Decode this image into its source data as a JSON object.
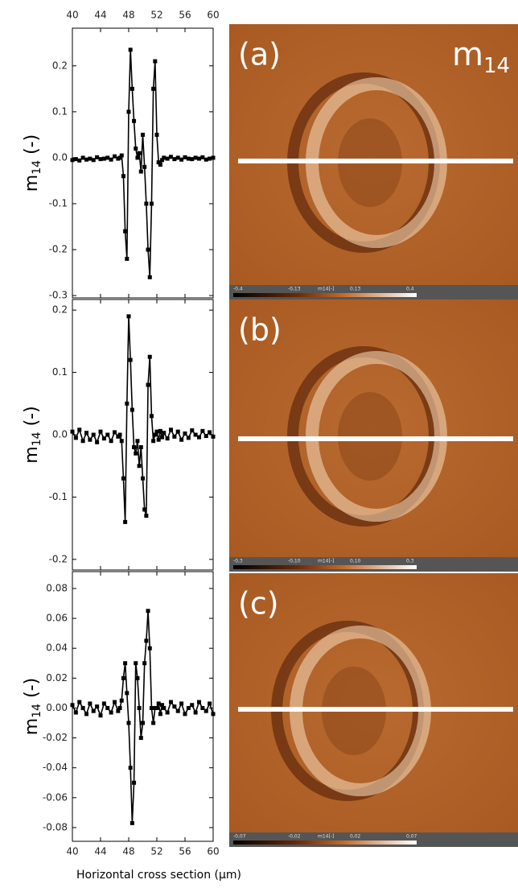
{
  "chart_data": [
    {
      "type": "line",
      "y_label": {
        "base": "m",
        "sub": "14",
        "rest": " (-)"
      },
      "x": [
        40,
        40.5,
        41,
        41.5,
        42,
        42.5,
        43,
        43.5,
        44,
        44.5,
        45,
        45.5,
        46,
        46.5,
        46.75,
        47,
        47.25,
        47.5,
        47.75,
        48,
        48.25,
        48.5,
        48.75,
        49,
        49.25,
        49.5,
        49.75,
        50,
        50.25,
        50.5,
        50.75,
        51,
        51.25,
        51.5,
        51.75,
        52,
        52.25,
        52.5,
        52.75,
        53,
        53.5,
        54,
        54.5,
        55,
        55.5,
        56,
        56.5,
        57,
        57.5,
        58,
        58.5,
        59,
        59.5,
        60
      ],
      "series": [
        {
          "color": "#000000",
          "values": [
            -0.005,
            -0.003,
            -0.006,
            0.0,
            -0.004,
            -0.002,
            -0.005,
            0.001,
            -0.003,
            -0.002,
            0.0,
            -0.004,
            0.003,
            -0.002,
            0.0,
            0.005,
            -0.04,
            -0.16,
            -0.22,
            0.1,
            0.235,
            0.15,
            0.08,
            0.02,
            0.0,
            0.01,
            -0.03,
            0.05,
            -0.02,
            -0.1,
            -0.2,
            -0.26,
            -0.1,
            0.15,
            0.21,
            0.05,
            -0.01,
            -0.015,
            -0.005,
            0.0,
            -0.002,
            0.002,
            -0.003,
            0.0,
            -0.004,
            0.001,
            -0.002,
            -0.003,
            0.0,
            -0.002,
            0.001,
            -0.004,
            -0.002,
            0.0
          ]
        }
      ],
      "xlim": [
        40,
        60
      ],
      "xticks": [
        40,
        44,
        48,
        52,
        56,
        60
      ],
      "ylim": [
        -0.305,
        0.282
      ],
      "yticks": [
        -0.3,
        -0.2,
        -0.1,
        {
          "value": 0,
          "label": "0.0"
        },
        0.1,
        0.2
      ]
    },
    {
      "type": "line",
      "y_label": {
        "base": "m",
        "sub": "14",
        "rest": " (-)"
      },
      "x": [
        40,
        40.5,
        41,
        41.5,
        42,
        42.5,
        43,
        43.5,
        44,
        44.5,
        45,
        45.5,
        46,
        46.5,
        46.75,
        47,
        47.25,
        47.5,
        47.75,
        48,
        48.25,
        48.5,
        48.75,
        49,
        49.25,
        49.5,
        49.75,
        50,
        50.25,
        50.5,
        50.75,
        51,
        51.25,
        51.5,
        51.75,
        52,
        52.25,
        52.5,
        52.75,
        53,
        53.5,
        54,
        54.5,
        55,
        55.5,
        56,
        56.5,
        57,
        57.5,
        58,
        58.5,
        59,
        59.5,
        60
      ],
      "series": [
        {
          "color": "#000000",
          "values": [
            0.005,
            -0.005,
            0.008,
            -0.01,
            0.003,
            -0.008,
            0.0,
            -0.012,
            0.005,
            -0.006,
            0.0,
            -0.01,
            0.004,
            -0.003,
            0.0,
            -0.01,
            -0.07,
            -0.14,
            0.05,
            0.19,
            0.12,
            0.04,
            -0.02,
            -0.03,
            -0.01,
            -0.05,
            -0.02,
            -0.07,
            -0.12,
            -0.13,
            0.08,
            0.125,
            0.03,
            -0.01,
            0.0,
            0.005,
            -0.008,
            0.006,
            -0.004,
            0.003,
            -0.006,
            0.008,
            -0.003,
            0.005,
            -0.008,
            0.002,
            -0.005,
            0.007,
            0.0,
            -0.004,
            0.006,
            -0.002,
            0.004,
            -0.003
          ]
        }
      ],
      "xlim": [
        40,
        60
      ],
      "xticks": [
        40,
        44,
        48,
        52,
        56,
        60
      ],
      "ylim": [
        -0.217,
        0.217
      ],
      "yticks": [
        -0.2,
        -0.1,
        {
          "value": 0,
          "label": "0.0"
        },
        0.1,
        0.2
      ]
    },
    {
      "type": "line",
      "y_label": {
        "base": "m",
        "sub": "14",
        "rest": " (-)"
      },
      "x_label": "Horizontal cross section (µm)",
      "x": [
        40,
        40.5,
        41,
        41.5,
        42,
        42.5,
        43,
        43.5,
        44,
        44.5,
        45,
        45.5,
        46,
        46.5,
        46.75,
        47,
        47.25,
        47.5,
        47.75,
        48,
        48.25,
        48.5,
        48.75,
        49,
        49.25,
        49.5,
        49.75,
        50,
        50.25,
        50.5,
        50.75,
        51,
        51.25,
        51.5,
        51.75,
        52,
        52.25,
        52.5,
        52.75,
        53,
        53.5,
        54,
        54.5,
        55,
        55.5,
        56,
        56.5,
        57,
        57.5,
        58,
        58.5,
        59,
        59.5,
        60
      ],
      "series": [
        {
          "color": "#000000",
          "values": [
            0.002,
            -0.003,
            0.004,
            0.0,
            -0.004,
            0.003,
            -0.002,
            0.001,
            -0.005,
            0.003,
            0.0,
            -0.003,
            0.004,
            -0.002,
            0.0,
            0.005,
            0.02,
            0.03,
            0.01,
            -0.01,
            -0.04,
            -0.077,
            -0.05,
            0.03,
            0.02,
            0.0,
            -0.02,
            -0.01,
            0.03,
            0.045,
            0.065,
            0.04,
            0.0,
            -0.01,
            0.0,
            0.0,
            0.003,
            -0.004,
            0.002,
            0.0,
            -0.003,
            0.004,
            0.001,
            -0.002,
            0.003,
            -0.004,
            0.0,
            0.002,
            -0.003,
            0.004,
            0.0,
            -0.002,
            0.003,
            -0.004
          ]
        }
      ],
      "xlim": [
        40,
        60
      ],
      "xticks": [
        40,
        44,
        48,
        52,
        56,
        60
      ],
      "ylim": [
        -0.0892,
        0.0913
      ],
      "yticks": [
        -0.08,
        -0.06,
        -0.04,
        -0.02,
        {
          "value": 0,
          "label": "0.00"
        },
        0.02,
        0.04,
        0.06,
        0.08
      ]
    }
  ],
  "image_title": {
    "base": "m",
    "sub": "14"
  },
  "images": [
    {
      "label": "(a)",
      "colorbar": [
        "-0,4",
        "-0,13",
        "m14[-]",
        "0,13",
        "0,4"
      ]
    },
    {
      "label": "(b)",
      "colorbar": [
        "-0,3",
        "-0,10",
        "m14[-]",
        "0,10",
        "0,3"
      ]
    },
    {
      "label": "(c)",
      "colorbar": [
        "-0,07",
        "-0,02",
        "m14[-]",
        "0,02",
        "0,07"
      ]
    }
  ]
}
